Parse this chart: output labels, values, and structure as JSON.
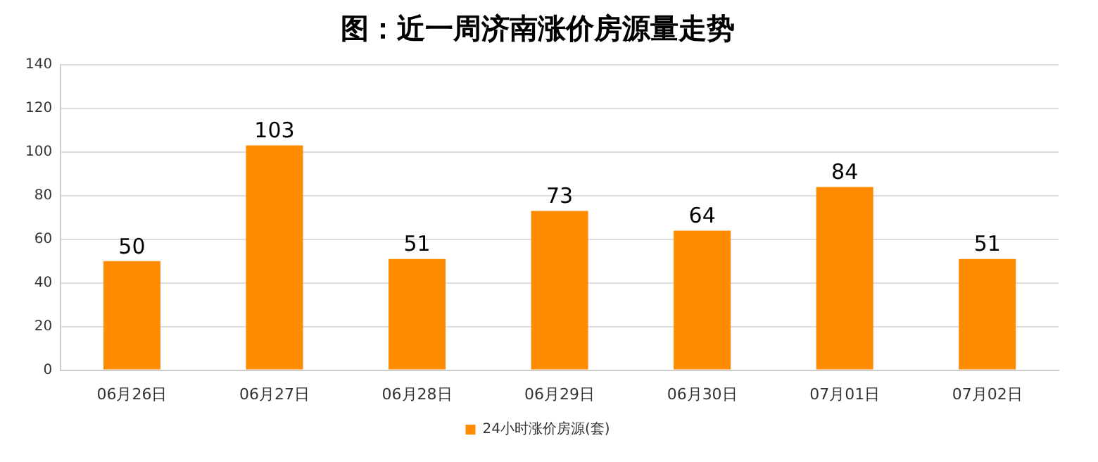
{
  "chart_data": {
    "type": "bar",
    "title": "图：近一周济南涨价房源量走势",
    "categories": [
      "06月26日",
      "06月27日",
      "06月28日",
      "06月29日",
      "06月30日",
      "07月01日",
      "07月02日"
    ],
    "series": [
      {
        "name": "24小时涨价房源(套)",
        "color": "#ff8c00",
        "values": [
          50,
          103,
          51,
          73,
          64,
          84,
          51
        ]
      }
    ],
    "ylim": [
      0,
      140
    ],
    "yticks": [
      0,
      20,
      40,
      60,
      80,
      100,
      120,
      140
    ],
    "grid": "y",
    "legend": "bottom",
    "data_labels": true
  }
}
